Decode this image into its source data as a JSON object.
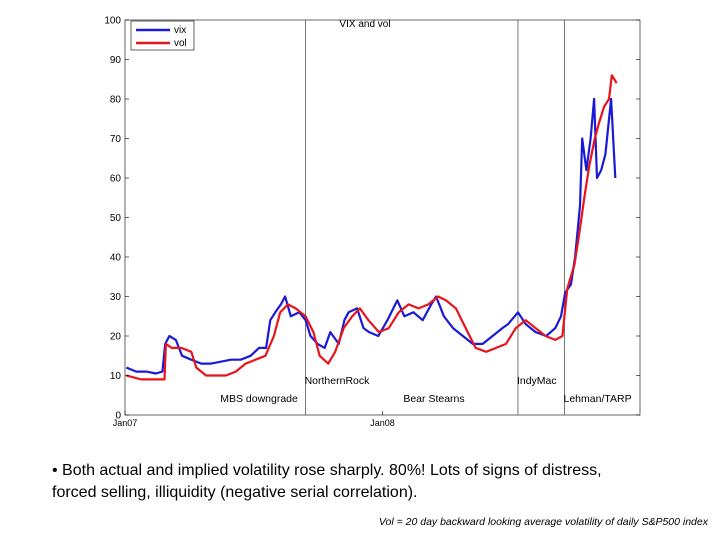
{
  "chart_data": {
    "type": "line",
    "title": "VIX and vol",
    "xlabel": "",
    "ylabel": "",
    "ylim": [
      0,
      100
    ],
    "yticks": [
      0,
      10,
      20,
      30,
      40,
      50,
      60,
      70,
      80,
      90,
      100
    ],
    "x_range": [
      "2007-01-01",
      "2008-12-31"
    ],
    "x_ticks": [
      {
        "label": "Jan07",
        "date": "2007-01-01"
      },
      {
        "label": "Jan08",
        "date": "2008-01-01"
      }
    ],
    "grid": false,
    "legend_position": "top-left",
    "events": [
      {
        "label": "MBS downgrade",
        "date": "2007-07-10",
        "line": false,
        "level": "lower"
      },
      {
        "label": "NorthernRock",
        "date": "2007-09-14",
        "line": true,
        "level": "upper"
      },
      {
        "label": "Bear Stearns",
        "date": "2008-03-14",
        "line": false,
        "level": "lower"
      },
      {
        "label": "IndyMac",
        "date": "2008-07-11",
        "line": true,
        "level": "upper"
      },
      {
        "label": "Lehman/TARP",
        "date": "2008-09-15",
        "line": true,
        "level": "lower"
      }
    ],
    "series": [
      {
        "name": "vix",
        "color": "#1a1ad6",
        "points": [
          [
            "2007-01-03",
            12
          ],
          [
            "2007-01-17",
            11
          ],
          [
            "2007-01-31",
            11
          ],
          [
            "2007-02-14",
            10.5
          ],
          [
            "2007-02-23",
            11
          ],
          [
            "2007-02-27",
            18
          ],
          [
            "2007-03-05",
            20
          ],
          [
            "2007-03-14",
            19
          ],
          [
            "2007-03-23",
            15
          ],
          [
            "2007-04-05",
            14
          ],
          [
            "2007-04-19",
            13
          ],
          [
            "2007-05-03",
            13
          ],
          [
            "2007-05-17",
            13.5
          ],
          [
            "2007-05-31",
            14
          ],
          [
            "2007-06-14",
            14
          ],
          [
            "2007-06-28",
            15
          ],
          [
            "2007-07-10",
            17
          ],
          [
            "2007-07-20",
            17
          ],
          [
            "2007-07-26",
            24
          ],
          [
            "2007-08-02",
            26
          ],
          [
            "2007-08-10",
            28
          ],
          [
            "2007-08-16",
            30
          ],
          [
            "2007-08-24",
            25
          ],
          [
            "2007-09-05",
            26
          ],
          [
            "2007-09-14",
            24
          ],
          [
            "2007-09-21",
            20
          ],
          [
            "2007-10-01",
            18
          ],
          [
            "2007-10-11",
            17
          ],
          [
            "2007-10-19",
            21
          ],
          [
            "2007-10-31",
            18
          ],
          [
            "2007-11-08",
            24
          ],
          [
            "2007-11-14",
            26
          ],
          [
            "2007-11-26",
            27
          ],
          [
            "2007-12-05",
            22
          ],
          [
            "2007-12-13",
            21
          ],
          [
            "2007-12-26",
            20
          ],
          [
            "2008-01-08",
            24
          ],
          [
            "2008-01-22",
            29
          ],
          [
            "2008-02-01",
            25
          ],
          [
            "2008-02-14",
            26
          ],
          [
            "2008-02-27",
            24
          ],
          [
            "2008-03-10",
            28
          ],
          [
            "2008-03-17",
            30
          ],
          [
            "2008-03-28",
            25
          ],
          [
            "2008-04-10",
            22
          ],
          [
            "2008-04-24",
            20
          ],
          [
            "2008-05-08",
            18
          ],
          [
            "2008-05-22",
            18
          ],
          [
            "2008-06-05",
            20
          ],
          [
            "2008-06-19",
            22
          ],
          [
            "2008-06-27",
            23
          ],
          [
            "2008-07-11",
            26
          ],
          [
            "2008-07-22",
            23
          ],
          [
            "2008-08-05",
            21
          ],
          [
            "2008-08-20",
            20
          ],
          [
            "2008-09-02",
            22
          ],
          [
            "2008-09-10",
            25
          ],
          [
            "2008-09-16",
            31
          ],
          [
            "2008-09-24",
            33
          ],
          [
            "2008-09-30",
            40
          ],
          [
            "2008-10-07",
            53
          ],
          [
            "2008-10-10",
            70
          ],
          [
            "2008-10-16",
            62
          ],
          [
            "2008-10-22",
            70
          ],
          [
            "2008-10-27",
            80
          ],
          [
            "2008-10-31",
            60
          ],
          [
            "2008-11-06",
            62
          ],
          [
            "2008-11-12",
            66
          ],
          [
            "2008-11-20",
            80
          ],
          [
            "2008-11-26",
            60
          ]
        ]
      },
      {
        "name": "vol",
        "color": "#e8141c",
        "points": [
          [
            "2007-01-03",
            10
          ],
          [
            "2007-01-24",
            9
          ],
          [
            "2007-02-14",
            9
          ],
          [
            "2007-02-26",
            9
          ],
          [
            "2007-02-28",
            18
          ],
          [
            "2007-03-08",
            17
          ],
          [
            "2007-03-22",
            17
          ],
          [
            "2007-04-05",
            16
          ],
          [
            "2007-04-12",
            12
          ],
          [
            "2007-04-26",
            10
          ],
          [
            "2007-05-10",
            10
          ],
          [
            "2007-05-24",
            10
          ],
          [
            "2007-06-07",
            11
          ],
          [
            "2007-06-21",
            13
          ],
          [
            "2007-07-05",
            14
          ],
          [
            "2007-07-19",
            15
          ],
          [
            "2007-07-31",
            20
          ],
          [
            "2007-08-09",
            26
          ],
          [
            "2007-08-20",
            28
          ],
          [
            "2007-08-31",
            27
          ],
          [
            "2007-09-14",
            25
          ],
          [
            "2007-09-25",
            21
          ],
          [
            "2007-10-04",
            15
          ],
          [
            "2007-10-16",
            13
          ],
          [
            "2007-10-26",
            16
          ],
          [
            "2007-11-07",
            22
          ],
          [
            "2007-11-19",
            25
          ],
          [
            "2007-11-30",
            27
          ],
          [
            "2007-12-12",
            24
          ],
          [
            "2007-12-27",
            21
          ],
          [
            "2008-01-10",
            22
          ],
          [
            "2008-01-24",
            26
          ],
          [
            "2008-02-07",
            28
          ],
          [
            "2008-02-21",
            27
          ],
          [
            "2008-03-06",
            28
          ],
          [
            "2008-03-20",
            30
          ],
          [
            "2008-03-31",
            29
          ],
          [
            "2008-04-14",
            27
          ],
          [
            "2008-04-28",
            22
          ],
          [
            "2008-05-12",
            17
          ],
          [
            "2008-05-27",
            16
          ],
          [
            "2008-06-10",
            17
          ],
          [
            "2008-06-24",
            18
          ],
          [
            "2008-07-08",
            22
          ],
          [
            "2008-07-22",
            24
          ],
          [
            "2008-08-05",
            22
          ],
          [
            "2008-08-19",
            20
          ],
          [
            "2008-09-02",
            19
          ],
          [
            "2008-09-12",
            20
          ],
          [
            "2008-09-19",
            32
          ],
          [
            "2008-09-29",
            38
          ],
          [
            "2008-10-06",
            46
          ],
          [
            "2008-10-13",
            55
          ],
          [
            "2008-10-20",
            63
          ],
          [
            "2008-10-28",
            70
          ],
          [
            "2008-11-03",
            74
          ],
          [
            "2008-11-10",
            78
          ],
          [
            "2008-11-17",
            80
          ],
          [
            "2008-11-21",
            86
          ],
          [
            "2008-11-28",
            84
          ]
        ]
      }
    ]
  },
  "text": {
    "bullet_line_1": "• Both actual and implied volatility rose sharply. 80%! Lots of signs of distress,",
    "bullet_line_2": "forced selling, illiquidity (negative serial correlation).",
    "footnote": "Vol = 20 day backward looking average volatility of daily S&P500 index"
  }
}
